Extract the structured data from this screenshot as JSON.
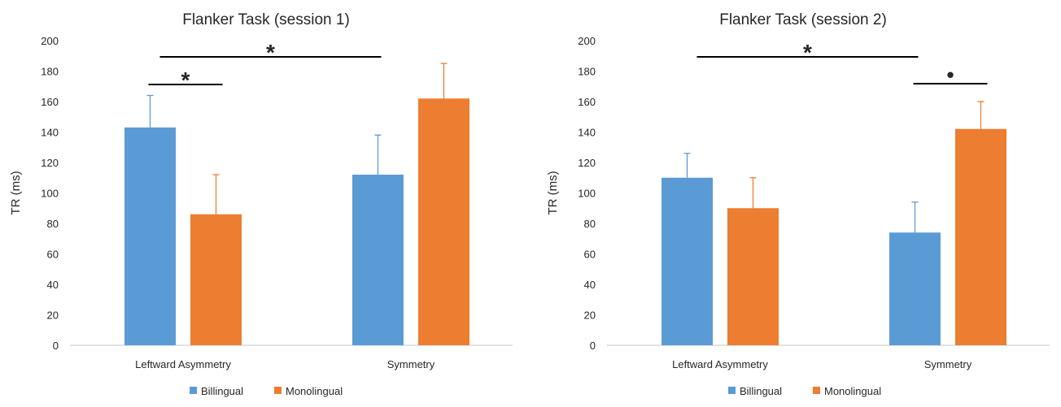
{
  "colors": {
    "billingual": "#5b9bd5",
    "monolingual": "#ed7d31",
    "axis": "#d9d9d9",
    "text": "#262626"
  },
  "chart_data": [
    {
      "type": "bar",
      "title": "Flanker Task (session 1)",
      "ylabel": "TR (ms)",
      "xlabel": "",
      "ylim": [
        0,
        200
      ],
      "yticks": [
        0,
        20,
        40,
        60,
        80,
        100,
        120,
        140,
        160,
        180,
        200
      ],
      "categories": [
        "Leftward Asymmetry",
        "Symmetry"
      ],
      "series": [
        {
          "name": "Billingual",
          "values": [
            143,
            112
          ],
          "errors": [
            21,
            26
          ]
        },
        {
          "name": "Monolingual",
          "values": [
            86,
            162
          ],
          "errors": [
            26,
            23
          ]
        }
      ],
      "grid": false,
      "legend": "bottom",
      "annotations": [
        {
          "text": "*",
          "type": "within-category",
          "category": 0
        },
        {
          "text": "*",
          "type": "across-categories",
          "from": "Leftward Asymmetry Billingual",
          "to": "Symmetry Billingual"
        }
      ]
    },
    {
      "type": "bar",
      "title": "Flanker Task (session 2)",
      "ylabel": "TR (ms)",
      "xlabel": "",
      "ylim": [
        0,
        200
      ],
      "yticks": [
        0,
        20,
        40,
        60,
        80,
        100,
        120,
        140,
        160,
        180,
        200
      ],
      "categories": [
        "Leftward Asymmetry",
        "Symmetry"
      ],
      "series": [
        {
          "name": "Billingual",
          "values": [
            110,
            74
          ],
          "errors": [
            16,
            20
          ]
        },
        {
          "name": "Monolingual",
          "values": [
            90,
            142
          ],
          "errors": [
            20,
            18
          ]
        }
      ],
      "grid": false,
      "legend": "bottom",
      "annotations": [
        {
          "text": "*",
          "type": "across-categories",
          "from": "Leftward Asymmetry Billingual",
          "to": "Symmetry Billingual"
        },
        {
          "text": "•",
          "type": "within-category",
          "category": 1
        }
      ]
    }
  ]
}
